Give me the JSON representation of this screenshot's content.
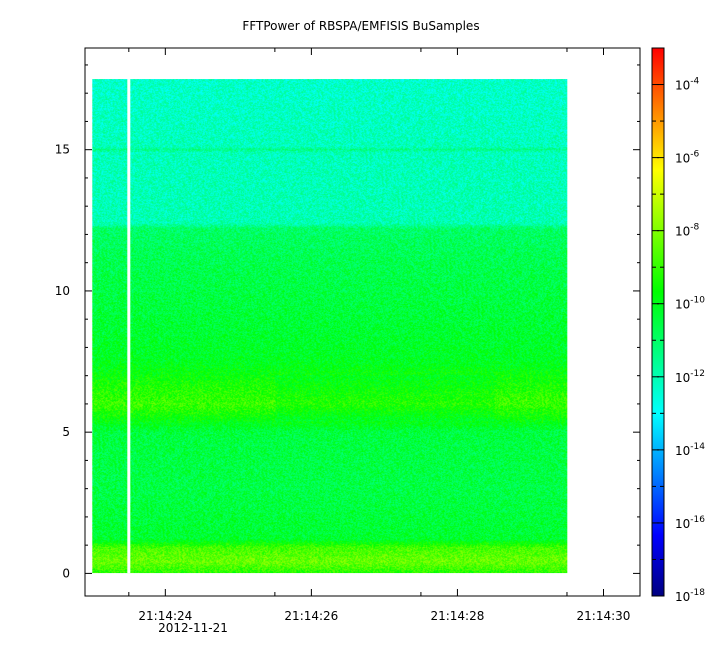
{
  "chart_data": {
    "type": "heatmap",
    "title": "FFTPower of RBSPA/EMFISIS  BuSamples",
    "xlabel": "",
    "ylabel": "",
    "x_axis": {
      "type": "time",
      "range": [
        "21:14:22.9",
        "21:14:30.5"
      ],
      "tick_labels": [
        "21:14:24",
        "21:14:26",
        "21:14:28",
        "21:14:30"
      ],
      "tick_values_s": [
        24,
        26,
        28,
        30
      ],
      "minor_tick_values_s": [
        23.5,
        25.5,
        27.5,
        29.5
      ],
      "date_label": "2012-11-21"
    },
    "y_axis": {
      "range": [
        -0.8,
        18.6
      ],
      "tick_labels": [
        "0",
        "5",
        "10",
        "15"
      ],
      "tick_values": [
        0,
        5,
        10,
        15
      ]
    },
    "colorbar": {
      "scale": "log",
      "range": [
        1e-18,
        0.001
      ],
      "tick_exponents": [
        -18,
        -16,
        -14,
        -12,
        -10,
        -8,
        -6,
        -4
      ],
      "tick_base": "10",
      "colormap": [
        "#000080",
        "#0000ff",
        "#0080ff",
        "#00ffff",
        "#00ff80",
        "#00ff00",
        "#80ff00",
        "#ffff00",
        "#ff8000",
        "#ff0000"
      ]
    },
    "data_extent": {
      "x_start_s": 23.0,
      "x_end_s": 29.5,
      "y_min": 0,
      "y_max": 17.5,
      "gap_at_s": 23.5
    },
    "spectrum_profile": [
      {
        "y": 0.0,
        "log_power": -9.2
      },
      {
        "y": 0.4,
        "log_power": -8.3
      },
      {
        "y": 0.9,
        "log_power": -8.8
      },
      {
        "y": 1.2,
        "log_power": -10.3
      },
      {
        "y": 3.0,
        "log_power": -10.6
      },
      {
        "y": 5.0,
        "log_power": -10.5
      },
      {
        "y": 5.4,
        "log_power": -9.8
      },
      {
        "y": 6.0,
        "log_power": -8.9
      },
      {
        "y": 6.8,
        "log_power": -9.5
      },
      {
        "y": 7.5,
        "log_power": -10.1
      },
      {
        "y": 9.0,
        "log_power": -10.4
      },
      {
        "y": 11.0,
        "log_power": -10.7
      },
      {
        "y": 12.2,
        "log_power": -11.0
      },
      {
        "y": 12.4,
        "log_power": -12.0
      },
      {
        "y": 14.9,
        "log_power": -12.1
      },
      {
        "y": 15.0,
        "log_power": -11.4
      },
      {
        "y": 15.1,
        "log_power": -12.1
      },
      {
        "y": 17.5,
        "log_power": -12.3
      }
    ]
  }
}
